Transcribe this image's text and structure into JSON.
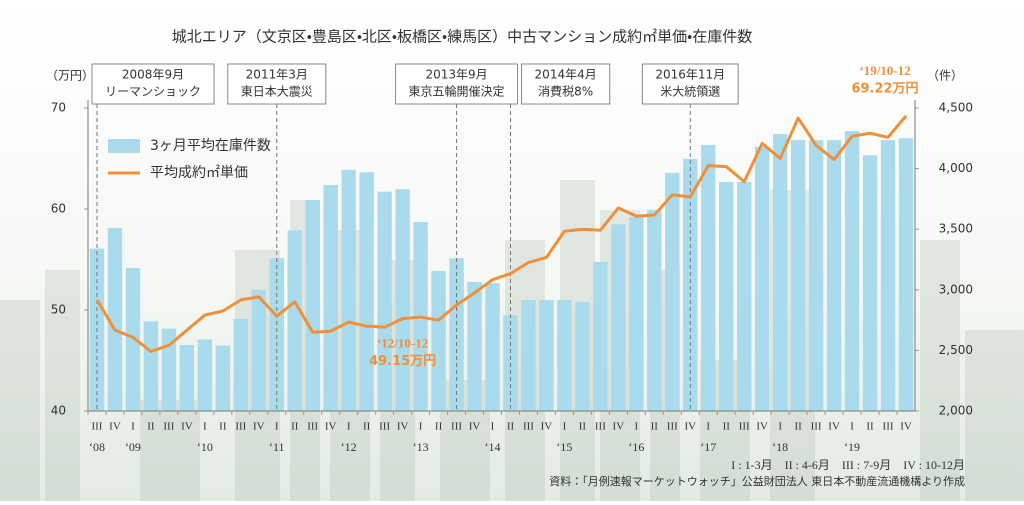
{
  "chart_data": {
    "type": "bar-line",
    "title": "城北エリア（文京区・豊島区・北区・板橋区・練馬区）中古マンション成約㎡単価・在庫件数",
    "y_unit": "（万円）",
    "y2_unit": "（件）",
    "categories": [
      "III",
      "IV",
      "I",
      "II",
      "III",
      "IV",
      "I",
      "II",
      "III",
      "IV",
      "I",
      "II",
      "III",
      "IV",
      "I",
      "II",
      "III",
      "IV",
      "I",
      "II",
      "III",
      "IV",
      "I",
      "II",
      "III",
      "IV",
      "I",
      "II",
      "III",
      "IV",
      "I",
      "II",
      "III",
      "IV",
      "I",
      "II",
      "III",
      "IV",
      "I",
      "II",
      "III",
      "IV",
      "I",
      "II",
      "III",
      "IV"
    ],
    "category_years": [
      "‘08",
      null,
      "‘09",
      null,
      null,
      null,
      "‘10",
      null,
      null,
      null,
      "‘11",
      null,
      null,
      null,
      "‘12",
      null,
      null,
      null,
      "‘13",
      null,
      null,
      null,
      "‘14",
      null,
      null,
      null,
      "‘15",
      null,
      null,
      null,
      "‘16",
      null,
      null,
      null,
      "‘17",
      null,
      null,
      null,
      "‘18",
      null,
      null,
      null,
      "‘19",
      null,
      null,
      null
    ],
    "events": [
      {
        "date": "2008年9月",
        "label": "リーマンショック"
      },
      null,
      null,
      null,
      null,
      null,
      null,
      null,
      null,
      null,
      {
        "date": "2011年3月",
        "label": "東日本大震災"
      },
      null,
      null,
      null,
      null,
      null,
      null,
      null,
      null,
      null,
      {
        "date": "2013年9月",
        "label": "東京五輪開催決定"
      },
      null,
      null,
      {
        "date": "2014年4月",
        "label": "消費税8%"
      },
      null,
      null,
      null,
      null,
      null,
      null,
      null,
      null,
      null,
      {
        "date": "2016年11月",
        "label": "米大統領選"
      },
      null,
      null,
      null,
      null,
      null,
      null,
      null,
      null,
      null,
      null,
      null,
      null
    ],
    "series": [
      {
        "name": "3ヶ月平均在庫件数",
        "type": "bar",
        "axis": "y2",
        "color": "#a9dbec",
        "values": [
          3340,
          3510,
          3180,
          2740,
          2680,
          2545,
          2590,
          2540,
          2760,
          3000,
          3260,
          3490,
          3740,
          3865,
          3990,
          3970,
          3810,
          3830,
          3560,
          3155,
          3260,
          3065,
          3055,
          2790,
          2915,
          2915,
          2915,
          2900,
          3230,
          3540,
          3600,
          3660,
          3965,
          4080,
          4195,
          3890,
          3890,
          4180,
          4285,
          4235,
          4235,
          4235,
          4310,
          4110,
          4235,
          4250
        ]
      },
      {
        "name": "平均成約㎡単価",
        "type": "line",
        "axis": "y",
        "color": "#f0903a",
        "values": [
          51.0,
          48.0,
          47.3,
          45.9,
          46.5,
          48.0,
          49.5,
          49.9,
          51.0,
          51.3,
          49.4,
          50.8,
          47.8,
          47.9,
          48.8,
          48.4,
          48.3,
          49.15,
          49.3,
          49.0,
          50.5,
          51.7,
          53.0,
          53.6,
          54.7,
          55.2,
          57.8,
          58.0,
          57.9,
          60.1,
          59.3,
          59.4,
          61.4,
          61.2,
          64.3,
          64.2,
          62.7,
          66.5,
          65.0,
          69.0,
          66.3,
          64.9,
          67.2,
          67.5,
          67.1,
          69.22
        ],
        "period_labels": [
          null,
          null,
          null,
          null,
          null,
          null,
          null,
          null,
          null,
          null,
          null,
          null,
          null,
          null,
          null,
          null,
          null,
          "‘12/10-12",
          null,
          null,
          null,
          null,
          null,
          null,
          null,
          null,
          null,
          null,
          null,
          null,
          null,
          null,
          null,
          null,
          null,
          null,
          null,
          null,
          null,
          null,
          null,
          null,
          null,
          null,
          null,
          "‘19/10-12"
        ],
        "value_labels": [
          null,
          null,
          null,
          null,
          null,
          null,
          null,
          null,
          null,
          null,
          null,
          null,
          null,
          null,
          null,
          null,
          null,
          "49.15万円",
          null,
          null,
          null,
          null,
          null,
          null,
          null,
          null,
          null,
          null,
          null,
          null,
          null,
          null,
          null,
          null,
          null,
          null,
          null,
          null,
          null,
          null,
          null,
          null,
          null,
          null,
          null,
          "69.22万円"
        ]
      }
    ],
    "ylim": [
      40,
      70
    ],
    "yticks": [
      40,
      50,
      60,
      70
    ],
    "y2lim": [
      2000,
      4500
    ],
    "y2ticks": [
      {
        "value": 2000,
        "label": "2,000"
      },
      {
        "value": 2500,
        "label": "2,500"
      },
      {
        "value": 3000,
        "label": "3,000"
      },
      {
        "value": 3500,
        "label": "3,500"
      },
      {
        "value": 4000,
        "label": "4,000"
      },
      {
        "value": 4500,
        "label": "4,500"
      }
    ],
    "quarter_note": "I : 1-3月　II : 4-6月　III : 7-9月　IV : 10-12月",
    "source": "資料：「月例速報マーケットウォッチ」公益財団法人 東日本不動産流通機構より作成"
  }
}
